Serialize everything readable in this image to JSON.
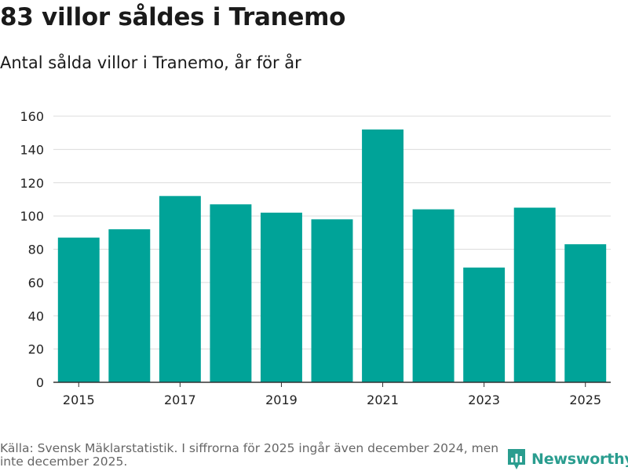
{
  "header": {
    "title": "83 villor såldes i Tranemo",
    "subtitle": "Antal sålda villor i Tranemo, år för år"
  },
  "chart_data": {
    "type": "bar",
    "title": "83 villor såldes i Tranemo",
    "subtitle": "Antal sålda villor i Tranemo, år för år",
    "xlabel": "",
    "ylabel": "",
    "categories": [
      2015,
      2016,
      2017,
      2018,
      2019,
      2020,
      2021,
      2022,
      2023,
      2024,
      2025
    ],
    "values": [
      87,
      92,
      112,
      107,
      102,
      98,
      152,
      104,
      69,
      105,
      83
    ],
    "x_ticks": [
      2015,
      2017,
      2019,
      2021,
      2023,
      2025
    ],
    "y_ticks": [
      0,
      20,
      40,
      60,
      80,
      100,
      120,
      140,
      160
    ],
    "ylim": [
      0,
      160
    ],
    "grid": true,
    "bar_color": "#00a398"
  },
  "footer": {
    "source": "Källa: Svensk Mäklarstatistik. I siffrorna för 2025 ingår även december 2024, men inte december 2025.",
    "brand": "Newsworthy",
    "brand_icon": "bar-chart-pin-icon",
    "brand_color": "#2a9d8f"
  }
}
